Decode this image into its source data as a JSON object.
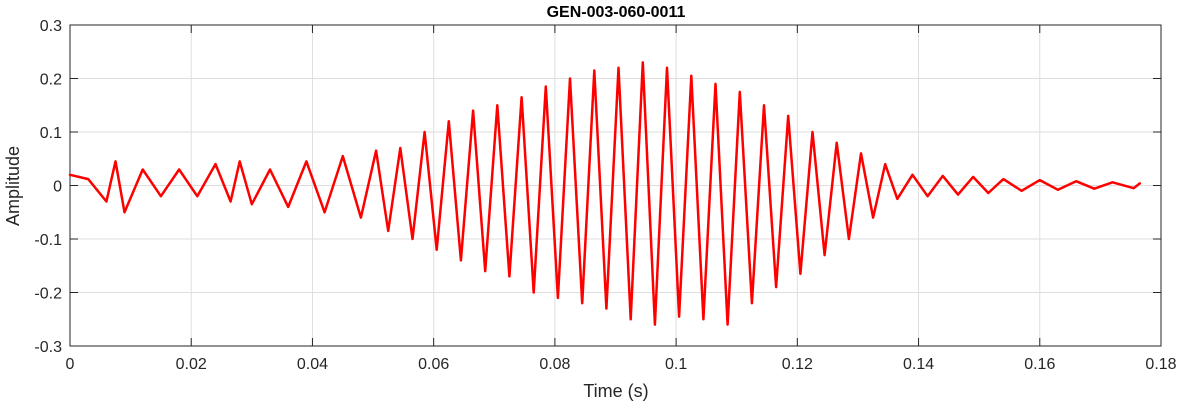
{
  "chart_data": {
    "type": "line",
    "title": "GEN-003-060-0011",
    "xlabel": "Time (s)",
    "ylabel": "Amplitude",
    "xlim": [
      0,
      0.18
    ],
    "ylim": [
      -0.3,
      0.3
    ],
    "xticks": [
      0,
      0.02,
      0.04,
      0.06,
      0.08,
      0.1,
      0.12,
      0.14,
      0.16,
      0.18
    ],
    "xtick_labels": [
      "0",
      "0.02",
      "0.04",
      "0.06",
      "0.08",
      "0.1",
      "0.12",
      "0.14",
      "0.16",
      "0.18"
    ],
    "yticks": [
      -0.3,
      -0.2,
      -0.1,
      0,
      0.1,
      0.2,
      0.3
    ],
    "ytick_labels": [
      "-0.3",
      "-0.2",
      "-0.1",
      "0",
      "0.1",
      "0.2",
      "0.3"
    ],
    "grid": true,
    "legend": "none",
    "series": [
      {
        "color": "#ff0000",
        "x": [
          0.0,
          0.003,
          0.006,
          0.0075,
          0.009,
          0.012,
          0.015,
          0.018,
          0.021,
          0.024,
          0.0265,
          0.028,
          0.03,
          0.033,
          0.036,
          0.039,
          0.042,
          0.045,
          0.048,
          0.0505,
          0.0525,
          0.0545,
          0.0565,
          0.0585,
          0.0605,
          0.0625,
          0.0645,
          0.0665,
          0.0685,
          0.0705,
          0.0725,
          0.0745,
          0.0765,
          0.0785,
          0.0805,
          0.0825,
          0.0845,
          0.0865,
          0.0885,
          0.0905,
          0.0925,
          0.0945,
          0.0965,
          0.0985,
          0.1005,
          0.1025,
          0.1045,
          0.1065,
          0.1085,
          0.1105,
          0.1125,
          0.1145,
          0.1165,
          0.1185,
          0.1205,
          0.1225,
          0.1245,
          0.1265,
          0.1285,
          0.1305,
          0.1325,
          0.1345,
          0.1365,
          0.139,
          0.1415,
          0.144,
          0.1465,
          0.149,
          0.1515,
          0.154,
          0.157,
          0.16,
          0.163,
          0.166,
          0.169,
          0.172,
          0.1755,
          0.1765
        ],
        "y": [
          0.02,
          0.012,
          -0.03,
          0.045,
          -0.05,
          0.03,
          -0.02,
          0.03,
          -0.02,
          0.04,
          -0.03,
          0.045,
          -0.035,
          0.03,
          -0.04,
          0.045,
          -0.05,
          0.055,
          -0.06,
          0.065,
          -0.085,
          0.07,
          -0.1,
          0.1,
          -0.12,
          0.12,
          -0.14,
          0.14,
          -0.16,
          0.15,
          -0.17,
          0.165,
          -0.2,
          0.185,
          -0.21,
          0.2,
          -0.22,
          0.215,
          -0.23,
          0.22,
          -0.25,
          0.23,
          -0.26,
          0.22,
          -0.245,
          0.205,
          -0.25,
          0.19,
          -0.26,
          0.175,
          -0.22,
          0.15,
          -0.19,
          0.13,
          -0.165,
          0.1,
          -0.13,
          0.08,
          -0.1,
          0.06,
          -0.06,
          0.04,
          -0.025,
          0.02,
          -0.02,
          0.018,
          -0.017,
          0.016,
          -0.014,
          0.012,
          -0.01,
          0.01,
          -0.008,
          0.008,
          -0.006,
          0.006,
          -0.005,
          0.004
        ]
      }
    ]
  }
}
